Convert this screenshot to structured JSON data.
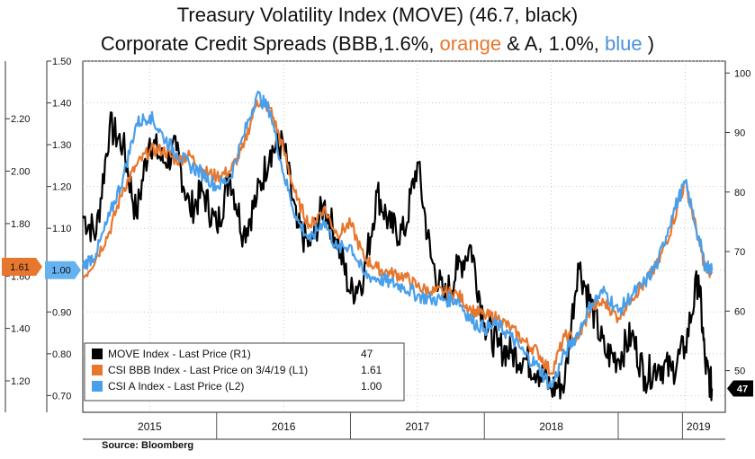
{
  "title_line1": "Treasury Volatility Index (MOVE) (46.7, black)",
  "title_line2_parts": [
    {
      "text": "Corporate Credit Spreads (BBB,1.6%, ",
      "color": "#111111"
    },
    {
      "text": "orange",
      "color": "#E8772E"
    },
    {
      "text": " & A, 1.0%, ",
      "color": "#111111"
    },
    {
      "text": "blue",
      "color": "#4A90D9"
    },
    {
      "text": " )",
      "color": "#111111"
    }
  ],
  "source": "Source: Bloomberg",
  "chart_data": {
    "type": "line",
    "x_label_years": [
      "2015",
      "2016",
      "2017",
      "2018",
      "2019"
    ],
    "axes": {
      "L1": {
        "ticks": [
          "1.20",
          "1.40",
          "1.60",
          "1.80",
          "2.00",
          "2.20"
        ],
        "range": [
          1.08,
          2.42
        ]
      },
      "L2": {
        "ticks": [
          "0.70",
          "0.80",
          "0.90",
          "1.00",
          "1.10",
          "1.20",
          "1.30",
          "1.40",
          "1.50"
        ],
        "range": [
          0.66,
          1.5
        ]
      },
      "R1": {
        "ticks": [
          "50",
          "60",
          "70",
          "80",
          "90",
          "100"
        ],
        "range": [
          43,
          102
        ]
      }
    },
    "last_value_tags": [
      {
        "axis": "L1",
        "text": "1.61",
        "value": 1.61,
        "color": "#E8772E"
      },
      {
        "axis": "L2",
        "text": "1.00",
        "value": 1.0,
        "color": "#66B2F0"
      },
      {
        "axis": "R1",
        "text": "47",
        "value": 47,
        "color": "#000000"
      }
    ],
    "series": [
      {
        "name": "MOVE Index - Last Price (R1)",
        "axis": "R1",
        "color": "#000000",
        "legend_value": "47",
        "x": [
          2014.5,
          2014.6,
          2014.7,
          2014.8,
          2014.9,
          2015.0,
          2015.1,
          2015.2,
          2015.3,
          2015.4,
          2015.5,
          2015.6,
          2015.7,
          2015.8,
          2015.9,
          2016.0,
          2016.1,
          2016.2,
          2016.3,
          2016.4,
          2016.5,
          2016.6,
          2016.7,
          2016.8,
          2016.9,
          2017.0,
          2017.1,
          2017.2,
          2017.3,
          2017.4,
          2017.5,
          2017.6,
          2017.7,
          2017.8,
          2017.9,
          2018.0,
          2018.1,
          2018.2,
          2018.3,
          2018.4,
          2018.5,
          2018.6,
          2018.7,
          2018.8,
          2018.9,
          2019.0,
          2019.1,
          2019.15,
          2019.2
        ],
        "y": [
          76,
          73,
          91,
          88,
          76,
          89,
          85,
          87,
          77,
          80,
          74,
          83,
          73,
          79,
          87,
          88,
          74,
          71,
          78,
          72,
          63,
          66,
          80,
          74,
          73,
          85,
          69,
          62,
          67,
          71,
          58,
          54,
          53,
          52,
          50,
          47,
          48,
          68,
          61,
          53,
          52,
          56,
          49,
          51,
          50,
          54,
          66,
          51,
          47
        ]
      },
      {
        "name": "CSI BBB Index - Last Price on 3/4/19 (L1)",
        "axis": "L1",
        "color": "#E8772E",
        "legend_value": "1.61",
        "x": [
          2014.5,
          2014.6,
          2014.7,
          2014.8,
          2014.9,
          2015.0,
          2015.1,
          2015.2,
          2015.3,
          2015.4,
          2015.5,
          2015.6,
          2015.7,
          2015.8,
          2015.9,
          2016.0,
          2016.1,
          2016.2,
          2016.3,
          2016.4,
          2016.5,
          2016.6,
          2016.7,
          2016.8,
          2016.9,
          2017.0,
          2017.1,
          2017.2,
          2017.3,
          2017.4,
          2017.5,
          2017.6,
          2017.7,
          2017.8,
          2017.9,
          2018.0,
          2018.1,
          2018.2,
          2018.3,
          2018.4,
          2018.5,
          2018.6,
          2018.7,
          2018.8,
          2018.9,
          2019.0,
          2019.1,
          2019.15,
          2019.2
        ],
        "y": [
          1.59,
          1.67,
          1.77,
          1.93,
          2.02,
          2.08,
          2.08,
          2.04,
          2.06,
          2.0,
          1.98,
          2.0,
          2.09,
          2.27,
          2.24,
          2.08,
          1.89,
          1.79,
          1.86,
          1.76,
          1.8,
          1.67,
          1.63,
          1.61,
          1.6,
          1.56,
          1.54,
          1.54,
          1.53,
          1.47,
          1.45,
          1.44,
          1.4,
          1.35,
          1.31,
          1.23,
          1.37,
          1.36,
          1.48,
          1.5,
          1.44,
          1.52,
          1.57,
          1.65,
          1.79,
          1.96,
          1.74,
          1.63,
          1.61
        ]
      },
      {
        "name": "CSI A Index - Last Price (L2)",
        "axis": "L2",
        "color": "#4A9FEA",
        "legend_value": "1.00",
        "x": [
          2014.5,
          2014.6,
          2014.7,
          2014.8,
          2014.9,
          2015.0,
          2015.1,
          2015.2,
          2015.3,
          2015.4,
          2015.5,
          2015.6,
          2015.7,
          2015.8,
          2015.9,
          2016.0,
          2016.1,
          2016.2,
          2016.3,
          2016.4,
          2016.5,
          2016.6,
          2016.7,
          2016.8,
          2016.9,
          2017.0,
          2017.1,
          2017.2,
          2017.3,
          2017.4,
          2017.5,
          2017.6,
          2017.7,
          2017.8,
          2017.9,
          2018.0,
          2018.1,
          2018.2,
          2018.3,
          2018.4,
          2018.5,
          2018.6,
          2018.7,
          2018.8,
          2018.9,
          2019.0,
          2019.1,
          2019.15,
          2019.2
        ],
        "y": [
          1.01,
          1.04,
          1.13,
          1.22,
          1.35,
          1.37,
          1.32,
          1.28,
          1.25,
          1.23,
          1.2,
          1.22,
          1.32,
          1.42,
          1.38,
          1.23,
          1.12,
          1.07,
          1.12,
          1.05,
          1.06,
          0.99,
          0.98,
          0.97,
          0.96,
          0.94,
          0.93,
          0.93,
          0.93,
          0.88,
          0.86,
          0.87,
          0.84,
          0.8,
          0.77,
          0.72,
          0.8,
          0.85,
          0.92,
          0.95,
          0.9,
          0.94,
          0.97,
          1.02,
          1.13,
          1.21,
          1.08,
          1.01,
          1.0
        ]
      }
    ]
  }
}
